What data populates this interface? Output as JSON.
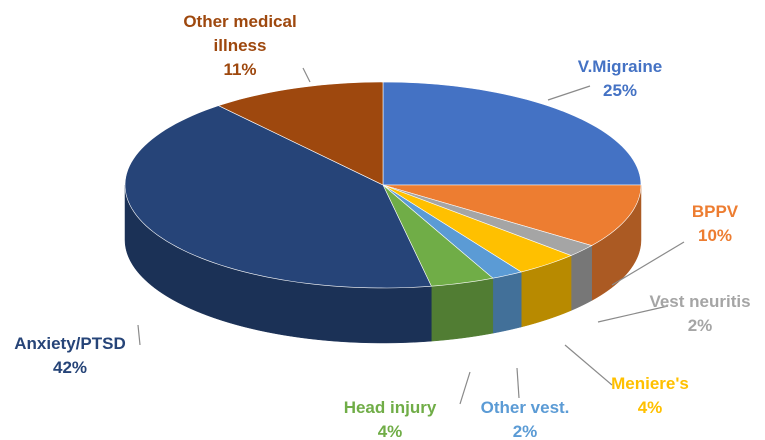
{
  "chart_data": {
    "type": "pie3d",
    "categories": [
      "V.Migraine",
      "BPPV",
      "Vest neuritis",
      "Meniere's",
      "Other vest.",
      "Head injury",
      "Anxiety/PTSD",
      "Other medical illness"
    ],
    "values": [
      25,
      10,
      2,
      4,
      2,
      4,
      42,
      11
    ],
    "value_labels": [
      "25%",
      "10%",
      "2%",
      "4%",
      "2%",
      "4%",
      "42%",
      "11%"
    ],
    "colors": [
      "#4472c4",
      "#ed7d31",
      "#a5a5a5",
      "#ffc000",
      "#5b9bd5",
      "#70ad47",
      "#264478",
      "#9e480e"
    ]
  }
}
